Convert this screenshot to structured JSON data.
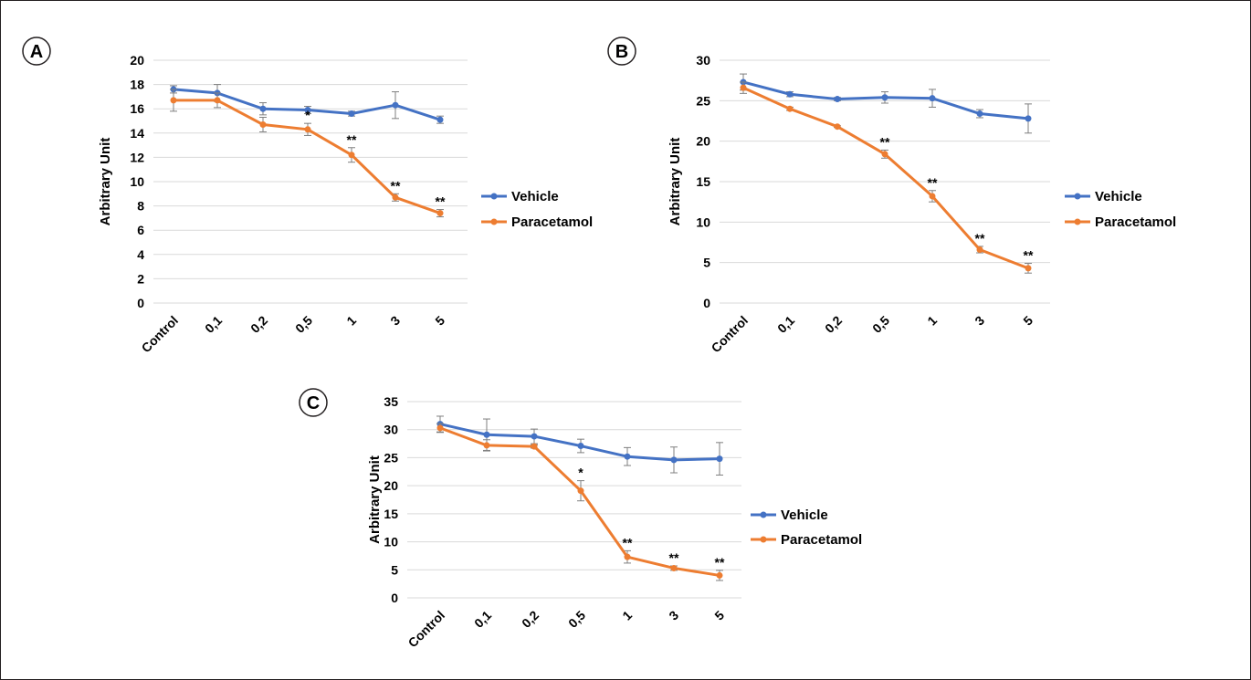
{
  "colors": {
    "vehicle": "#4472c4",
    "paracetamol": "#ed7d31",
    "grid": "#d9d9d9",
    "error_bar": "#7f7f7f",
    "text": "#000000"
  },
  "chart_data": [
    {
      "panel_label": "A",
      "type": "line",
      "ylabel": "Arbitrary Unit",
      "ylim": [
        0,
        20
      ],
      "yticks": [
        0,
        2,
        4,
        6,
        8,
        10,
        12,
        14,
        16,
        18,
        20
      ],
      "categories": [
        "Control",
        "0,1",
        "0,2",
        "0,5",
        "1",
        "3",
        "5"
      ],
      "grid": true,
      "legend_position": "right",
      "series": [
        {
          "name": "Vehicle",
          "color": "#4472c4",
          "values": [
            17.6,
            17.3,
            16.0,
            15.9,
            15.6,
            16.3,
            15.1
          ],
          "errors": [
            0.3,
            0.7,
            0.5,
            0.3,
            0.2,
            1.1,
            0.3
          ]
        },
        {
          "name": "Paracetamol",
          "color": "#ed7d31",
          "values": [
            16.7,
            16.7,
            14.7,
            14.3,
            12.2,
            8.7,
            7.4
          ],
          "errors": [
            0.9,
            0.6,
            0.6,
            0.5,
            0.6,
            0.3,
            0.3
          ]
        }
      ],
      "annotations": [
        "",
        "",
        "",
        "*",
        "**",
        "**",
        "**"
      ]
    },
    {
      "panel_label": "B",
      "type": "line",
      "ylabel": "Arbitrary Unit",
      "ylim": [
        0,
        30
      ],
      "yticks": [
        0,
        5,
        10,
        15,
        20,
        25,
        30
      ],
      "categories": [
        "Control",
        "0,1",
        "0,2",
        "0,5",
        "1",
        "3",
        "5"
      ],
      "grid": true,
      "legend_position": "right",
      "series": [
        {
          "name": "Vehicle",
          "color": "#4472c4",
          "values": [
            27.3,
            25.8,
            25.2,
            25.4,
            25.3,
            23.4,
            22.8
          ],
          "errors": [
            1.0,
            0.3,
            0.2,
            0.7,
            1.1,
            0.5,
            1.8
          ]
        },
        {
          "name": "Paracetamol",
          "color": "#ed7d31",
          "values": [
            26.6,
            24.0,
            21.8,
            18.4,
            13.2,
            6.6,
            4.3
          ],
          "errors": [
            0.7,
            0.2,
            0.1,
            0.5,
            0.7,
            0.4,
            0.6
          ]
        }
      ],
      "annotations": [
        "",
        "",
        "",
        "**",
        "**",
        "**",
        "**"
      ]
    },
    {
      "panel_label": "C",
      "type": "line",
      "ylabel": "Arbitrary Unit",
      "ylim": [
        0,
        35
      ],
      "yticks": [
        0,
        5,
        10,
        15,
        20,
        25,
        30,
        35
      ],
      "categories": [
        "Control",
        "0,1",
        "0,2",
        "0,5",
        "1",
        "3",
        "5"
      ],
      "grid": true,
      "legend_position": "right",
      "series": [
        {
          "name": "Vehicle",
          "color": "#4472c4",
          "values": [
            31.0,
            29.1,
            28.8,
            27.1,
            25.2,
            24.6,
            24.8
          ],
          "errors": [
            1.4,
            2.8,
            1.3,
            1.2,
            1.6,
            2.3,
            2.9
          ]
        },
        {
          "name": "Paracetamol",
          "color": "#ed7d31",
          "values": [
            30.3,
            27.2,
            27.0,
            19.1,
            7.3,
            5.3,
            4.0
          ],
          "errors": [
            0.8,
            1.0,
            0.3,
            1.8,
            1.1,
            0.4,
            0.9
          ]
        }
      ],
      "annotations": [
        "",
        "",
        "",
        "*",
        "**",
        "**",
        "**"
      ]
    }
  ]
}
